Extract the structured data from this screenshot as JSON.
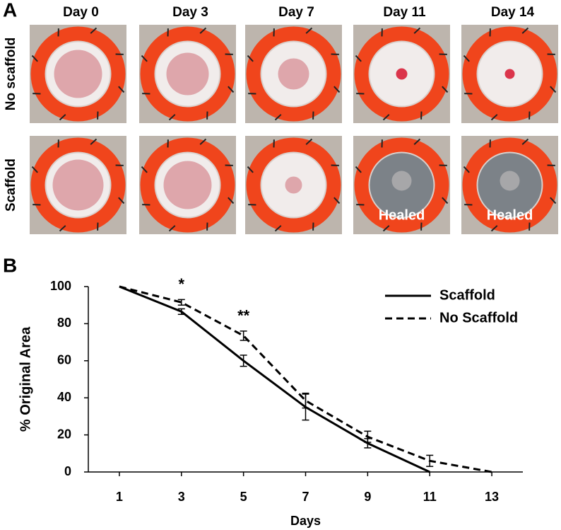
{
  "panel_a": {
    "label": "A",
    "columns": [
      "Day 0",
      "Day 3",
      "Day 7",
      "Day 11",
      "Day 14"
    ],
    "rows": [
      {
        "label": "No scaffold"
      },
      {
        "label": "Scaffold",
        "healed": [
          "Healed",
          "Healed"
        ]
      }
    ]
  },
  "chart_data": {
    "type": "line",
    "panel_label": "B",
    "x_label": "Days",
    "y_label": "% Original Area",
    "xlim": [
      0,
      14
    ],
    "xticks": [
      1,
      3,
      5,
      7,
      9,
      11,
      13
    ],
    "ylim": [
      0,
      100
    ],
    "yticks": [
      0,
      20,
      40,
      60,
      80,
      100
    ],
    "legend": "upper right",
    "series": [
      {
        "name": "Scaffold",
        "color": "#000000",
        "dash": false,
        "x": [
          1,
          3,
          5,
          7,
          9,
          11
        ],
        "values": [
          100,
          86.5,
          60,
          35,
          15.5,
          0
        ],
        "errors": [
          null,
          1.5,
          3,
          7,
          2.5,
          null
        ]
      },
      {
        "name": "No Scaffold",
        "color": "#000000",
        "dash": true,
        "x": [
          1,
          3,
          5,
          7,
          9,
          11,
          13
        ],
        "values": [
          100,
          91.5,
          73.5,
          38.5,
          19,
          6,
          0
        ],
        "errors": [
          null,
          1.5,
          2.5,
          4,
          3,
          3,
          null
        ]
      }
    ],
    "annotations": [
      {
        "text": "*",
        "x": 3
      },
      {
        "text": "**",
        "x": 5
      }
    ]
  }
}
